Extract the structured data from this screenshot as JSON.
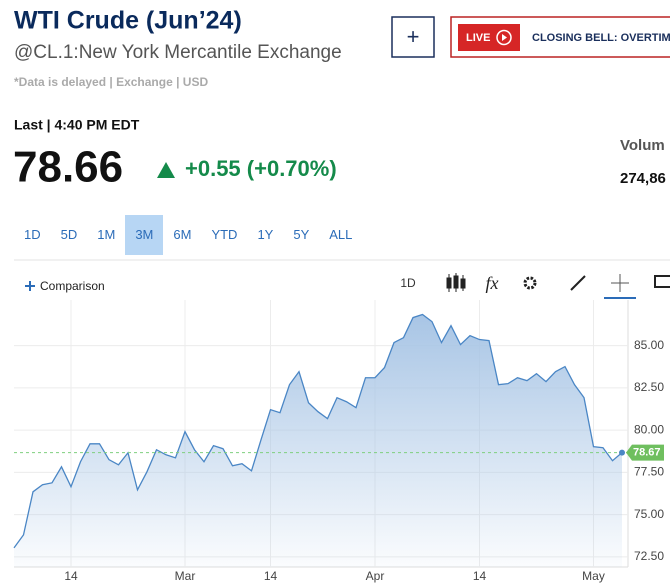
{
  "header": {
    "title": "WTI Crude (Jun’24)",
    "symbol": "@CL.1:New York Mercantile Exchange",
    "note": "*Data is delayed | Exchange | USD"
  },
  "actions": {
    "add": "+",
    "live": "LIVE",
    "banner": "CLOSING BELL: OVERTIM"
  },
  "quote": {
    "last_time": "Last | 4:40 PM EDT",
    "price": "78.66",
    "change": "+0.55 (+0.70%)",
    "volume_label": "Volum",
    "volume": "274,86"
  },
  "ranges": {
    "items": [
      "1D",
      "5D",
      "1M",
      "3M",
      "6M",
      "YTD",
      "1Y",
      "5Y",
      "ALL"
    ],
    "selected": 3
  },
  "toolbar": {
    "comparison": "Comparison",
    "interval": "1D",
    "formula": "fx"
  },
  "chart_data": {
    "type": "area",
    "categories": [
      null,
      null,
      null,
      null,
      null,
      null,
      "14",
      null,
      null,
      null,
      null,
      null,
      null,
      null,
      null,
      null,
      null,
      null,
      "Mar",
      null,
      null,
      null,
      null,
      null,
      null,
      null,
      null,
      "14",
      null,
      null,
      null,
      null,
      null,
      null,
      null,
      null,
      null,
      null,
      "Apr",
      null,
      null,
      null,
      null,
      null,
      null,
      null,
      null,
      null,
      null,
      "14",
      null,
      null,
      null,
      null,
      null,
      null,
      null,
      null,
      null,
      null,
      null,
      "May",
      null,
      null,
      null
    ],
    "values": [
      73.03,
      73.8,
      76.35,
      76.77,
      76.88,
      77.83,
      76.65,
      78.13,
      79.19,
      79.19,
      78.25,
      77.95,
      78.66,
      76.47,
      77.54,
      78.84,
      78.54,
      78.36,
      79.91,
      78.84,
      78.13,
      79.08,
      78.9,
      77.89,
      78.01,
      77.59,
      79.43,
      81.21,
      81.03,
      82.69,
      83.46,
      81.62,
      81.09,
      80.68,
      81.92,
      81.68,
      81.33,
      83.1,
      83.1,
      83.7,
      85.18,
      85.47,
      86.66,
      86.84,
      86.42,
      85.18,
      86.18,
      85.06,
      85.59,
      85.36,
      85.3,
      82.69,
      82.75,
      83.1,
      82.93,
      83.34,
      82.87,
      83.46,
      83.76,
      82.69,
      81.92,
      79.02,
      78.96,
      78.19,
      78.67
    ],
    "ylim": [
      71.9,
      87.7
    ],
    "yticks": [
      {
        "value": 72.5,
        "label": "72.50"
      },
      {
        "value": 75,
        "label": "75.00"
      },
      {
        "value": 77.5,
        "label": "77.50"
      },
      {
        "value": 80,
        "label": "80.00"
      },
      {
        "value": 82.5,
        "label": "82.50"
      },
      {
        "value": 85,
        "label": "85.00"
      }
    ],
    "grid": true,
    "line_color": "#4a86c5",
    "fill_color": "#a8c5e5",
    "ref_color": "#7fcf7f",
    "tag_color": "#6fbf5f"
  }
}
